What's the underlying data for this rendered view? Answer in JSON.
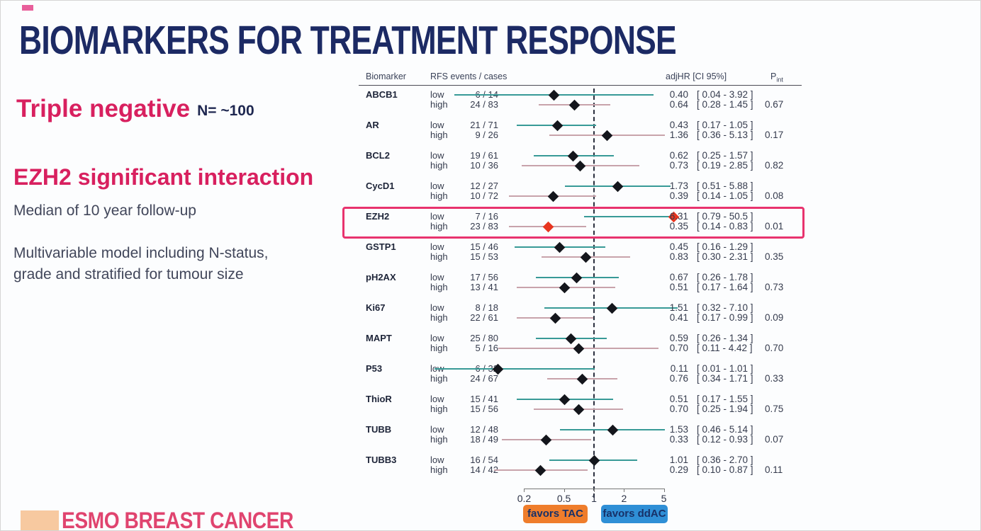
{
  "slide": {
    "title": "BIOMARKERS FOR TREATMENT RESPONSE",
    "heading_primary": "Triple negative",
    "heading_primary_note": "N= ~100",
    "heading_secondary": "EZH2 significant interaction",
    "subtext_followup": "Median of 10 year follow-up",
    "subtext_model_line1": "Multivariable model including N-status,",
    "subtext_model_line2": "grade and stratified for tumour size",
    "footer_logo_text": "ESMO BREAST CANCER",
    "colors": {
      "title": "#1c2a64",
      "heading_pink": "#d8205f",
      "body_text": "#41465a",
      "footer_pink": "#e0446f",
      "footer_square": "#f7c9a0"
    }
  },
  "chart_data": {
    "type": "forest",
    "column_headers": {
      "biomarker": "Biomarker",
      "events": "RFS events / cases",
      "hr_ci": "adjHR  [CI 95%]",
      "p_main": "P",
      "p_sub": "int"
    },
    "x_axis": {
      "scale": "log10",
      "ticks": [
        "0.2",
        "0.5",
        "1",
        "2",
        "5"
      ],
      "tick_values": [
        0.2,
        0.5,
        1,
        2,
        5
      ],
      "reference_line": 1
    },
    "legend": [
      {
        "label": "favors TAC",
        "color": "#ef7d2b"
      },
      {
        "label": "favors ddAC",
        "color": "#2f8fd6"
      }
    ],
    "highlight": {
      "biomarker": "EZH2",
      "box_color": "#e8336e",
      "marker_color": "#e8351f"
    },
    "colors": {
      "low_line": "#389a97",
      "high_line": "#c8a3ab",
      "marker": "#14161c",
      "dashed_reference": "#2a2f3e"
    },
    "rows": [
      {
        "biomarker": "ABCB1",
        "p_int": "0.67",
        "low": {
          "level": "low",
          "events": "6 / 14",
          "hr": 0.4,
          "hr_text": "0.40",
          "ci_low": 0.04,
          "ci_high": 3.92,
          "ci_text": "[ 0.04 - 3.92 ]"
        },
        "high": {
          "level": "high",
          "events": "24 / 83",
          "hr": 0.64,
          "hr_text": "0.64",
          "ci_low": 0.28,
          "ci_high": 1.45,
          "ci_text": "[ 0.28 - 1.45 ]"
        }
      },
      {
        "biomarker": "AR",
        "p_int": "0.17",
        "low": {
          "level": "low",
          "events": "21 / 71",
          "hr": 0.43,
          "hr_text": "0.43",
          "ci_low": 0.17,
          "ci_high": 1.05,
          "ci_text": "[ 0.17 - 1.05 ]"
        },
        "high": {
          "level": "high",
          "events": "9 / 26",
          "hr": 1.36,
          "hr_text": "1.36",
          "ci_low": 0.36,
          "ci_high": 5.13,
          "ci_text": "[ 0.36 - 5.13 ]"
        }
      },
      {
        "biomarker": "BCL2",
        "p_int": "0.82",
        "low": {
          "level": "low",
          "events": "19 / 61",
          "hr": 0.62,
          "hr_text": "0.62",
          "ci_low": 0.25,
          "ci_high": 1.57,
          "ci_text": "[ 0.25 - 1.57 ]"
        },
        "high": {
          "level": "high",
          "events": "10 / 36",
          "hr": 0.73,
          "hr_text": "0.73",
          "ci_low": 0.19,
          "ci_high": 2.85,
          "ci_text": "[ 0.19 - 2.85 ]"
        }
      },
      {
        "biomarker": "CycD1",
        "p_int": "0.08",
        "low": {
          "level": "low",
          "events": "12 / 27",
          "hr": 1.73,
          "hr_text": "1.73",
          "ci_low": 0.51,
          "ci_high": 5.88,
          "ci_text": "[ 0.51 - 5.88 ]"
        },
        "high": {
          "level": "high",
          "events": "10 / 72",
          "hr": 0.39,
          "hr_text": "0.39",
          "ci_low": 0.14,
          "ci_high": 1.05,
          "ci_text": "[ 0.14 - 1.05 ]"
        }
      },
      {
        "biomarker": "EZH2",
        "p_int": "0.01",
        "low": {
          "level": "low",
          "events": "7 / 16",
          "hr": 6.31,
          "hr_text": "6.31",
          "ci_low": 0.79,
          "ci_high": 50.5,
          "ci_text": "[ 0.79 - 50.5 ]"
        },
        "high": {
          "level": "high",
          "events": "23 / 83",
          "hr": 0.35,
          "hr_text": "0.35",
          "ci_low": 0.14,
          "ci_high": 0.83,
          "ci_text": "[ 0.14 - 0.83 ]"
        }
      },
      {
        "biomarker": "GSTP1",
        "p_int": "0.35",
        "low": {
          "level": "low",
          "events": "15 / 46",
          "hr": 0.45,
          "hr_text": "0.45",
          "ci_low": 0.16,
          "ci_high": 1.29,
          "ci_text": "[ 0.16 - 1.29 ]"
        },
        "high": {
          "level": "high",
          "events": "15 / 53",
          "hr": 0.83,
          "hr_text": "0.83",
          "ci_low": 0.3,
          "ci_high": 2.31,
          "ci_text": "[ 0.30 - 2.31 ]"
        }
      },
      {
        "biomarker": "pH2AX",
        "p_int": "0.73",
        "low": {
          "level": "low",
          "events": "17 / 56",
          "hr": 0.67,
          "hr_text": "0.67",
          "ci_low": 0.26,
          "ci_high": 1.78,
          "ci_text": "[ 0.26 - 1.78 ]"
        },
        "high": {
          "level": "high",
          "events": "13 / 41",
          "hr": 0.51,
          "hr_text": "0.51",
          "ci_low": 0.17,
          "ci_high": 1.64,
          "ci_text": "[ 0.17 - 1.64 ]"
        }
      },
      {
        "biomarker": "Ki67",
        "p_int": "0.09",
        "low": {
          "level": "low",
          "events": "8 / 18",
          "hr": 1.51,
          "hr_text": "1.51",
          "ci_low": 0.32,
          "ci_high": 7.1,
          "ci_text": "[ 0.32 - 7.10 ]"
        },
        "high": {
          "level": "high",
          "events": "22 / 61",
          "hr": 0.41,
          "hr_text": "0.41",
          "ci_low": 0.17,
          "ci_high": 0.99,
          "ci_text": "[ 0.17 - 0.99 ]"
        }
      },
      {
        "biomarker": "MAPT",
        "p_int": "0.70",
        "low": {
          "level": "low",
          "events": "25 / 80",
          "hr": 0.59,
          "hr_text": "0.59",
          "ci_low": 0.26,
          "ci_high": 1.34,
          "ci_text": "[ 0.26 - 1.34 ]"
        },
        "high": {
          "level": "high",
          "events": "5 / 16",
          "hr": 0.7,
          "hr_text": "0.70",
          "ci_low": 0.11,
          "ci_high": 4.42,
          "ci_text": "[ 0.11 - 4.42 ]"
        }
      },
      {
        "biomarker": "P53",
        "p_int": "0.33",
        "low": {
          "level": "low",
          "events": "6 / 32",
          "hr": 0.11,
          "hr_text": "0.11",
          "ci_low": 0.01,
          "ci_high": 1.01,
          "ci_text": "[ 0.01 - 1.01 ]"
        },
        "high": {
          "level": "high",
          "events": "24 / 67",
          "hr": 0.76,
          "hr_text": "0.76",
          "ci_low": 0.34,
          "ci_high": 1.71,
          "ci_text": "[ 0.34 - 1.71 ]"
        }
      },
      {
        "biomarker": "ThioR",
        "p_int": "0.75",
        "low": {
          "level": "low",
          "events": "15 / 41",
          "hr": 0.51,
          "hr_text": "0.51",
          "ci_low": 0.17,
          "ci_high": 1.55,
          "ci_text": "[ 0.17 - 1.55 ]"
        },
        "high": {
          "level": "high",
          "events": "15 / 56",
          "hr": 0.7,
          "hr_text": "0.70",
          "ci_low": 0.25,
          "ci_high": 1.94,
          "ci_text": "[ 0.25 - 1.94 ]"
        }
      },
      {
        "biomarker": "TUBB",
        "p_int": "0.07",
        "low": {
          "level": "low",
          "events": "12 / 48",
          "hr": 1.53,
          "hr_text": "1.53",
          "ci_low": 0.46,
          "ci_high": 5.14,
          "ci_text": "[ 0.46 - 5.14 ]"
        },
        "high": {
          "level": "high",
          "events": "18 / 49",
          "hr": 0.33,
          "hr_text": "0.33",
          "ci_low": 0.12,
          "ci_high": 0.93,
          "ci_text": "[ 0.12 - 0.93 ]"
        }
      },
      {
        "biomarker": "TUBB3",
        "p_int": "0.11",
        "low": {
          "level": "low",
          "events": "16 / 54",
          "hr": 1.01,
          "hr_text": "1.01",
          "ci_low": 0.36,
          "ci_high": 2.7,
          "ci_text": "[ 0.36 - 2.70 ]"
        },
        "high": {
          "level": "high",
          "events": "14 / 42",
          "hr": 0.29,
          "hr_text": "0.29",
          "ci_low": 0.1,
          "ci_high": 0.87,
          "ci_text": "[ 0.10 - 0.87 ]"
        }
      }
    ]
  }
}
